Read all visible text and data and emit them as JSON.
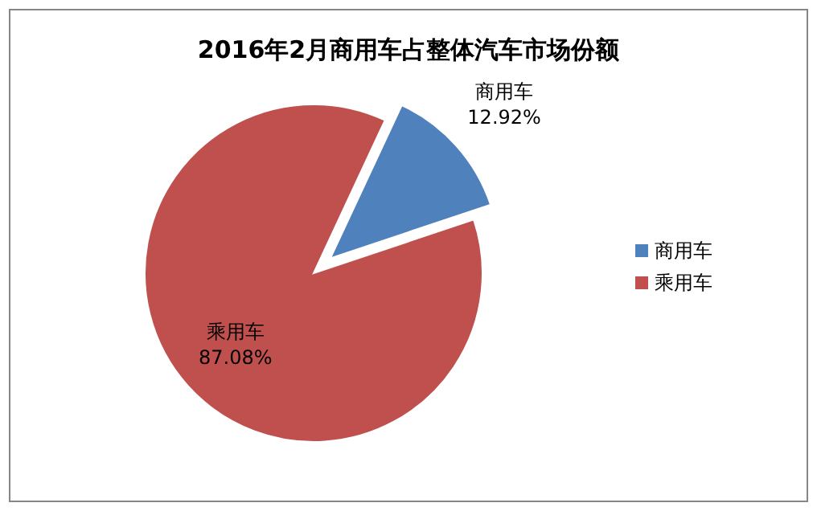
{
  "chart_data": {
    "type": "pie",
    "title": "2016年2月商用车占整体汽车市场份额",
    "categories": [
      "商用车",
      "乘用车"
    ],
    "values": [
      12.92,
      87.08
    ],
    "colors": [
      "#4f81bd",
      "#c0504d"
    ],
    "value_labels": [
      "12.92%",
      "87.08%"
    ],
    "legend": "right"
  }
}
